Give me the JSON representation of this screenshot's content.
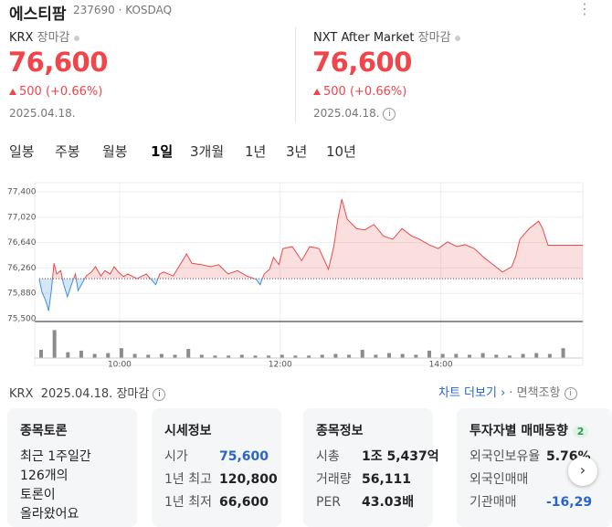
{
  "header": {
    "name": "에스티팜",
    "code": "237690",
    "market": "KOSDAQ"
  },
  "quotes": [
    {
      "venue": "KRX",
      "status": "장마감",
      "price": "76,600",
      "change": "500",
      "change_pct": "(+0.66%)",
      "date": "2025.04.18."
    },
    {
      "venue": "NXT After Market",
      "status": "장마감",
      "price": "76,600",
      "change": "500",
      "change_pct": "(+0.66%)",
      "date": "2025.04.18."
    }
  ],
  "tabs": [
    "일봉",
    "주봉",
    "월봉",
    "1일",
    "3개월",
    "1년",
    "3년",
    "10년"
  ],
  "active_tab": "1일",
  "chart_data": [
    {
      "type": "line",
      "color": "#e94a4a",
      "down_color": "#3f8fd9",
      "x": [
        540,
        542,
        545,
        547,
        549,
        551,
        553,
        556,
        558,
        561,
        564,
        567,
        569,
        572,
        575,
        579,
        582,
        586,
        589,
        593,
        596,
        599,
        603,
        606,
        613,
        620,
        627,
        630,
        633,
        640,
        647,
        650,
        654,
        661,
        668,
        674,
        681,
        688,
        695,
        702,
        705,
        708,
        712,
        715,
        719,
        722,
        729,
        736,
        742,
        749,
        756,
        760,
        763,
        766,
        770,
        777,
        783,
        790,
        797,
        804,
        811,
        818,
        824,
        831,
        838,
        845,
        852,
        858,
        865,
        872,
        879,
        886,
        893,
        896,
        899,
        906,
        913,
        916,
        920,
        946
      ],
      "values": [
        76090,
        75900,
        75760,
        75620,
        75920,
        76330,
        76170,
        76220,
        76030,
        75830,
        76010,
        76170,
        75920,
        76030,
        76140,
        76200,
        76280,
        76140,
        76220,
        76170,
        76280,
        76200,
        76130,
        76170,
        76100,
        76170,
        76010,
        76170,
        76200,
        76140,
        76370,
        76470,
        76330,
        76310,
        76280,
        76310,
        76170,
        76220,
        76140,
        76090,
        76010,
        76170,
        76240,
        76420,
        76310,
        76550,
        76580,
        76370,
        76580,
        76550,
        76240,
        76580,
        76990,
        77290,
        76990,
        76850,
        76830,
        76910,
        76740,
        76690,
        76850,
        76740,
        76690,
        76610,
        76550,
        76650,
        76580,
        76610,
        76550,
        76420,
        76310,
        76200,
        76280,
        76440,
        76690,
        76850,
        76960,
        76850,
        76600,
        76600
      ],
      "xlim": [
        540,
        946
      ],
      "ylim": [
        75500,
        77400
      ],
      "yticks": [
        {
          "value": 77400,
          "label": "77,400"
        },
        {
          "value": 77020,
          "label": "77,020"
        },
        {
          "value": 76640,
          "label": "76,640"
        },
        {
          "value": 76260,
          "label": "76,260"
        },
        {
          "value": 75880,
          "label": "75,880"
        },
        {
          "value": 75500,
          "label": "75,500"
        }
      ],
      "xticks": [
        {
          "value": 600,
          "label": "10:00"
        },
        {
          "value": 720,
          "label": "12:00"
        },
        {
          "value": 840,
          "label": "14:00"
        }
      ],
      "grid": true
    },
    {
      "type": "bar",
      "color": "#8c8c8c",
      "x": [
        540,
        550,
        560,
        570,
        580,
        590,
        600,
        610,
        620,
        630,
        640,
        650,
        660,
        670,
        680,
        690,
        700,
        710,
        720,
        730,
        740,
        750,
        760,
        770,
        780,
        790,
        800,
        810,
        820,
        830,
        840,
        850,
        860,
        870,
        880,
        890,
        900,
        910,
        920,
        930
      ],
      "values": [
        10,
        34,
        7,
        9,
        5,
        6,
        12,
        5,
        4,
        5,
        4,
        11,
        4,
        3,
        3,
        4,
        3,
        3,
        4,
        3,
        3,
        4,
        5,
        4,
        10,
        4,
        6,
        5,
        4,
        9,
        5,
        5,
        4,
        6,
        4,
        3,
        5,
        6,
        5,
        12
      ],
      "ylim": [
        0,
        40
      ]
    }
  ],
  "footer": {
    "venue": "KRX",
    "date": "2025.04.18.",
    "status": "장마감",
    "more": "차트 더보기",
    "disclaimer": "면책조항"
  },
  "cards": [
    {
      "title": "종목토론",
      "lines": [
        "최근 1주일간",
        "126개의",
        "토론이",
        "올라왔어요"
      ]
    },
    {
      "title": "시세정보",
      "rows": [
        [
          "시가",
          "75,600"
        ],
        [
          "1년 최고",
          "120,800"
        ],
        [
          "1년 최저",
          "66,600"
        ]
      ]
    },
    {
      "title": "종목정보",
      "rows": [
        [
          "시총",
          "1조 5,437억"
        ],
        [
          "거래량",
          "56,111"
        ],
        [
          "PER",
          "43.03배"
        ]
      ]
    },
    {
      "title": "투자자별 매매동향",
      "badge": "2",
      "rows": [
        [
          "외국인보유율",
          "5.76%"
        ],
        [
          "외국인매매",
          ""
        ],
        [
          "기관매매",
          "-16,29"
        ]
      ]
    }
  ]
}
